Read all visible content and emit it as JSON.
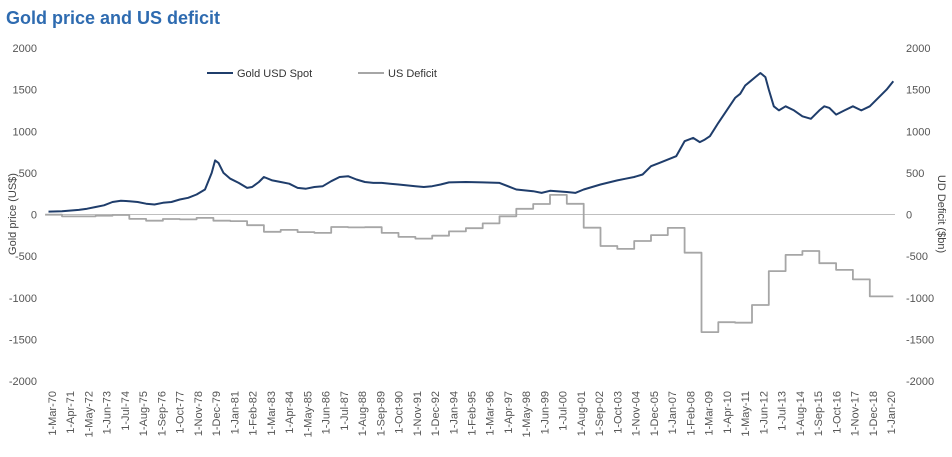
{
  "chart_data": {
    "type": "line",
    "title": "Gold price and US deficit",
    "ylabel_left": "Gold price (US$)",
    "ylabel_right": "UD Deficit ($bn)",
    "ylim_left": [
      -2000,
      2000
    ],
    "ylim_right": [
      -2000,
      2000
    ],
    "yticks": [
      "2000",
      "1500",
      "1000",
      "500",
      "0",
      "-500",
      "-1000",
      "-1500",
      "-2000"
    ],
    "xlim": [
      1970.17,
      2020.5
    ],
    "legend_placement": "top",
    "grid": false,
    "x_tick_labels": [
      "1-Mar-70",
      "1-Apr-71",
      "1-May-72",
      "1-Jun-73",
      "1-Jul-74",
      "1-Aug-75",
      "1-Sep-76",
      "1-Oct-77",
      "1-Nov-78",
      "1-Dec-79",
      "1-Jan-81",
      "1-Feb-82",
      "1-Mar-83",
      "1-Apr-84",
      "1-May-85",
      "1-Jun-86",
      "1-Jul-87",
      "1-Aug-88",
      "1-Sep-89",
      "1-Oct-90",
      "1-Nov-91",
      "1-Dec-92",
      "1-Jan-94",
      "1-Feb-95",
      "1-Mar-96",
      "1-Apr-97",
      "1-May-98",
      "1-Jun-99",
      "1-Jul-00",
      "1-Aug-01",
      "1-Sep-02",
      "1-Oct-03",
      "1-Nov-04",
      "1-Dec-05",
      "1-Jan-07",
      "1-Feb-08",
      "1-Mar-09",
      "1-Apr-10",
      "1-May-11",
      "1-Jun-12",
      "1-Jul-13",
      "1-Aug-14",
      "1-Sep-15",
      "1-Oct-16",
      "1-Nov-17",
      "1-Dec-18",
      "1-Jan-20"
    ],
    "series": [
      {
        "name": "Gold USD Spot",
        "color": "#1f3d6b",
        "axis": "left",
        "step": false,
        "x": [
          1970.2,
          1971.0,
          1972.0,
          1972.5,
          1973.0,
          1973.5,
          1974.0,
          1974.5,
          1975.0,
          1975.5,
          1976.0,
          1976.5,
          1977.0,
          1977.5,
          1978.0,
          1978.5,
          1979.0,
          1979.5,
          1979.9,
          1980.1,
          1980.3,
          1980.6,
          1981.0,
          1981.5,
          1982.0,
          1982.3,
          1982.7,
          1983.0,
          1983.5,
          1984.0,
          1984.5,
          1985.0,
          1985.5,
          1986.0,
          1986.5,
          1987.0,
          1987.5,
          1988.0,
          1988.5,
          1989.0,
          1989.5,
          1990.0,
          1990.5,
          1991.0,
          1991.5,
          1992.0,
          1992.5,
          1993.0,
          1993.5,
          1994.0,
          1995.0,
          1996.0,
          1997.0,
          1998.0,
          1999.0,
          1999.5,
          2000.0,
          2001.0,
          2001.5,
          2002.0,
          2003.0,
          2004.0,
          2004.5,
          2005.0,
          2005.5,
          2006.0,
          2006.5,
          2007.0,
          2007.5,
          2008.0,
          2008.5,
          2008.9,
          2009.2,
          2009.5,
          2010.0,
          2010.5,
          2011.0,
          2011.3,
          2011.6,
          2011.9,
          2012.2,
          2012.5,
          2012.8,
          2013.0,
          2013.3,
          2013.6,
          2014.0,
          2014.5,
          2015.0,
          2015.5,
          2016.0,
          2016.3,
          2016.6,
          2017.0,
          2017.5,
          2018.0,
          2018.5,
          2019.0,
          2019.5,
          2020.0,
          2020.4
        ],
        "y": [
          35,
          40,
          55,
          70,
          90,
          110,
          150,
          165,
          160,
          150,
          130,
          120,
          140,
          150,
          180,
          200,
          240,
          300,
          500,
          650,
          620,
          500,
          430,
          380,
          320,
          330,
          390,
          450,
          410,
          390,
          370,
          320,
          310,
          330,
          340,
          400,
          450,
          460,
          420,
          390,
          380,
          380,
          370,
          360,
          350,
          340,
          330,
          340,
          360,
          385,
          390,
          385,
          380,
          300,
          280,
          260,
          285,
          270,
          260,
          300,
          360,
          410,
          430,
          450,
          480,
          580,
          620,
          660,
          700,
          880,
          920,
          870,
          900,
          940,
          1100,
          1250,
          1400,
          1450,
          1550,
          1600,
          1650,
          1700,
          1650,
          1500,
          1300,
          1250,
          1300,
          1250,
          1180,
          1150,
          1250,
          1300,
          1280,
          1200,
          1250,
          1300,
          1250,
          1300,
          1400,
          1500,
          1600
        ]
      },
      {
        "name": "US Deficit",
        "color": "#a6a6a6",
        "axis": "right",
        "step": true,
        "x": [
          1970.0,
          1971.0,
          1972.0,
          1973.0,
          1974.0,
          1975.0,
          1976.0,
          1977.0,
          1978.0,
          1979.0,
          1980.0,
          1981.0,
          1982.0,
          1983.0,
          1984.0,
          1985.0,
          1986.0,
          1987.0,
          1988.0,
          1989.0,
          1990.0,
          1991.0,
          1992.0,
          1993.0,
          1994.0,
          1995.0,
          1996.0,
          1997.0,
          1998.0,
          1999.0,
          2000.0,
          2001.0,
          2002.0,
          2003.0,
          2004.0,
          2005.0,
          2006.0,
          2007.0,
          2008.0,
          2009.0,
          2010.0,
          2011.0,
          2012.0,
          2013.0,
          2014.0,
          2015.0,
          2016.0,
          2017.0,
          2018.0,
          2019.0,
          2020.0,
          2020.4
        ],
        "y": [
          -3,
          -23,
          -23,
          -15,
          -6,
          -53,
          -74,
          -54,
          -59,
          -41,
          -74,
          -79,
          -128,
          -208,
          -185,
          -212,
          -221,
          -150,
          -155,
          -153,
          -221,
          -269,
          -290,
          -255,
          -203,
          -164,
          -107,
          -22,
          69,
          126,
          236,
          128,
          -158,
          -378,
          -413,
          -318,
          -248,
          -161,
          -459,
          -1413,
          -1294,
          -1300,
          -1087,
          -680,
          -485,
          -439,
          -585,
          -665,
          -779,
          -984,
          -984,
          -984
        ]
      }
    ]
  }
}
